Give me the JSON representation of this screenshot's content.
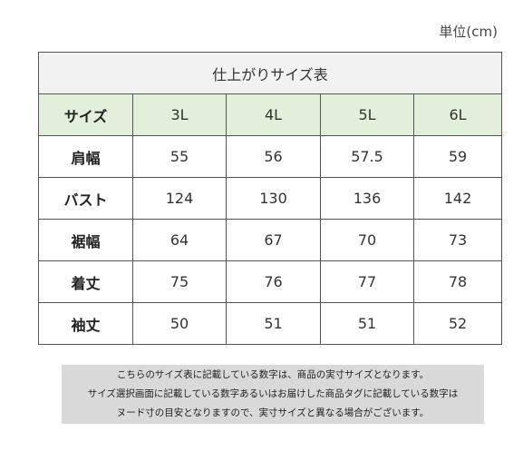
{
  "unit_label": "単位(cm)",
  "table": {
    "title": "仕上がりサイズ表",
    "header_label": "サイズ",
    "sizes": [
      "3L",
      "4L",
      "5L",
      "6L"
    ],
    "rows": [
      {
        "label": "肩幅",
        "values": [
          "55",
          "56",
          "57.5",
          "59"
        ]
      },
      {
        "label": "バスト",
        "values": [
          "124",
          "130",
          "136",
          "142"
        ]
      },
      {
        "label": "裾幅",
        "values": [
          "64",
          "67",
          "70",
          "73"
        ]
      },
      {
        "label": "着丈",
        "values": [
          "75",
          "76",
          "77",
          "78"
        ]
      },
      {
        "label": "袖丈",
        "values": [
          "50",
          "51",
          "51",
          "52"
        ]
      }
    ]
  },
  "note": {
    "lines": [
      "こちらのサイズ表に記載している数字は、商品の実寸サイズとなります。",
      "サイズ選択画面に記載している数字あるいはお届けした商品タグに記載している数字は",
      "ヌード寸の目安となりますので、実寸サイズと異なる場合がございます。"
    ]
  }
}
